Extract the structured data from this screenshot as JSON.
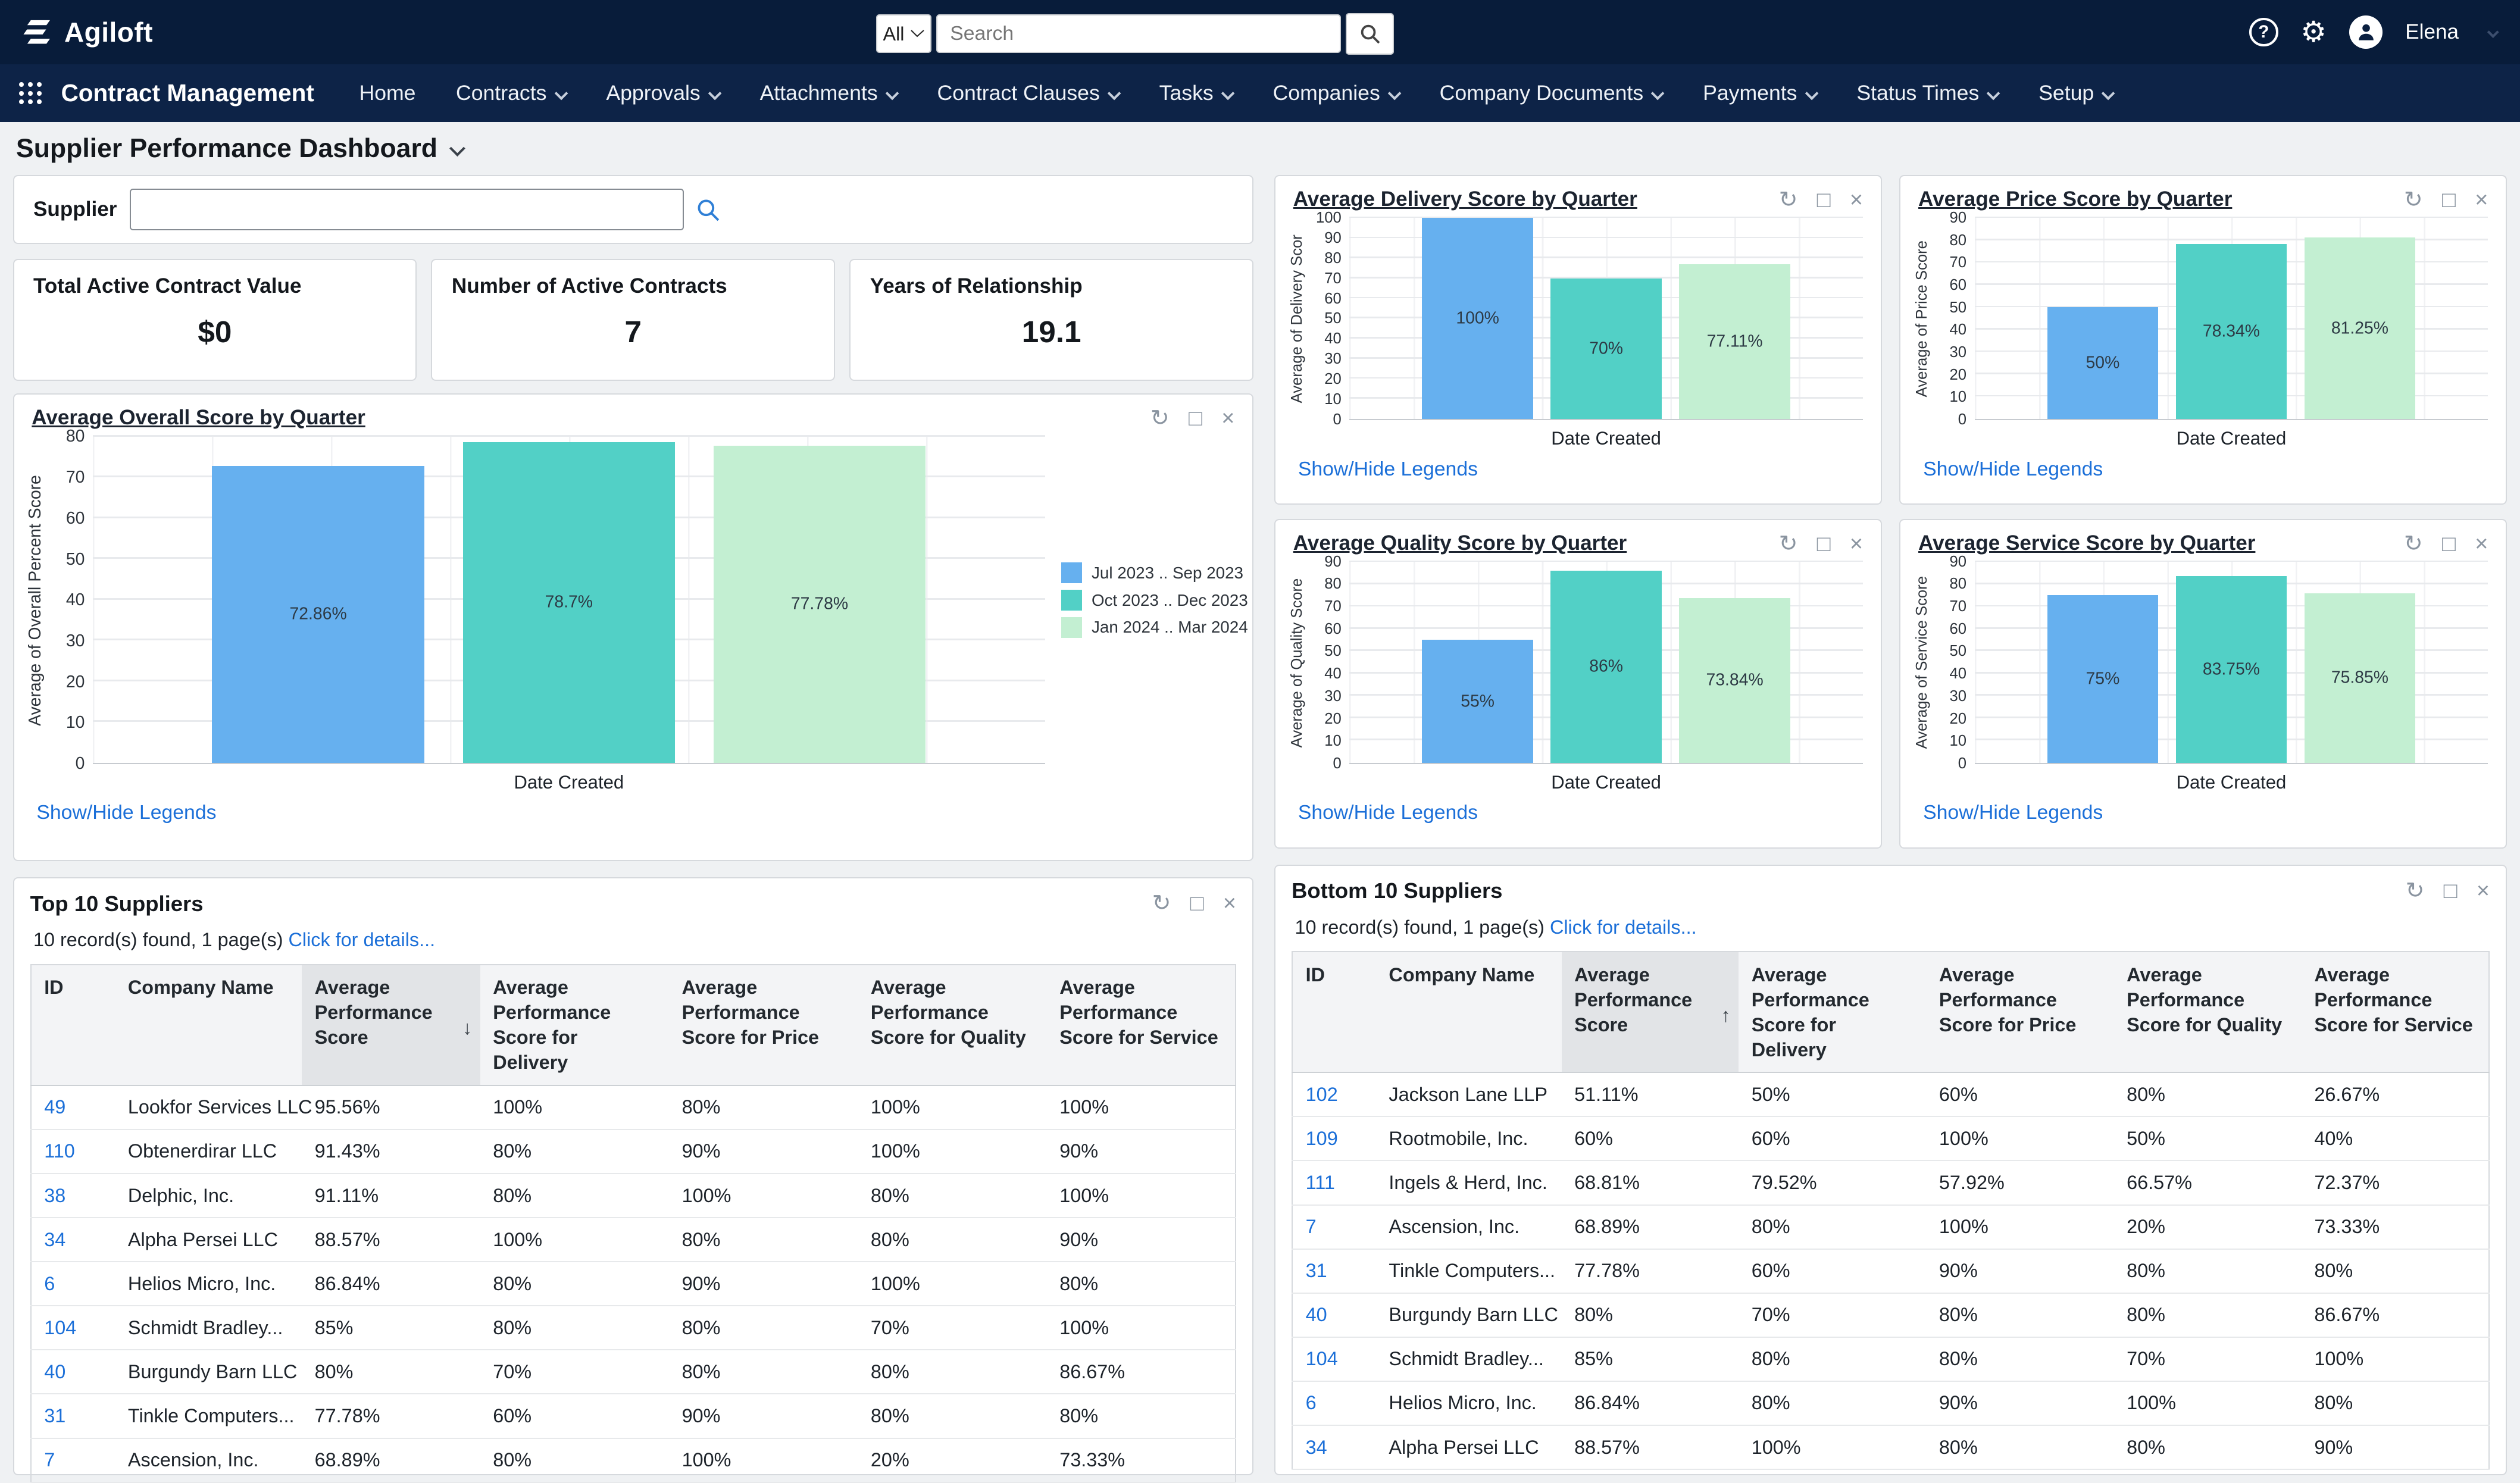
{
  "topbar": {
    "logo_text": "Agiloft",
    "search": {
      "scope": "All",
      "placeholder": "Search"
    },
    "user_name": "Elena"
  },
  "nav": {
    "app_title": "Contract Management",
    "items": [
      {
        "label": "Home",
        "dropdown": false
      },
      {
        "label": "Contracts",
        "dropdown": true
      },
      {
        "label": "Approvals",
        "dropdown": true
      },
      {
        "label": "Attachments",
        "dropdown": true
      },
      {
        "label": "Contract Clauses",
        "dropdown": true
      },
      {
        "label": "Tasks",
        "dropdown": true
      },
      {
        "label": "Companies",
        "dropdown": true
      },
      {
        "label": "Company Documents",
        "dropdown": true
      },
      {
        "label": "Payments",
        "dropdown": true
      },
      {
        "label": "Status Times",
        "dropdown": true
      },
      {
        "label": "Setup",
        "dropdown": true
      }
    ]
  },
  "page": {
    "title": "Supplier Performance Dashboard"
  },
  "filter": {
    "label": "Supplier",
    "value": ""
  },
  "kpis": [
    {
      "label": "Total Active Contract Value",
      "value": "$0"
    },
    {
      "label": "Number of Active Contracts",
      "value": "7"
    },
    {
      "label": "Years of Relationship",
      "value": "19.1"
    }
  ],
  "labels": {
    "show_hide_legends": "Show/Hide Legends"
  },
  "colors": {
    "bar_series": [
      "#66b0ef",
      "#52d0c6",
      "#c3efd2"
    ],
    "link": "#1b6fd8",
    "header_bg": "#081c3a"
  },
  "icons": {
    "refresh": "↻",
    "maximize": "□",
    "close": "×",
    "sort_desc": "↓",
    "sort_asc": "↑"
  },
  "legend_entries": [
    "Jul 2023 .. Sep 2023",
    "Oct 2023 .. Dec 2023",
    "Jan 2024 .. Mar 2024"
  ],
  "chart_data": [
    {
      "type": "bar",
      "title": "Average Overall Score by Quarter",
      "ylabel": "Average of Overall Percent Score",
      "xlabel": "Date Created",
      "ylim": [
        0,
        80
      ],
      "ytick_step": 10,
      "categories": [
        "Jul 2023 .. Sep 2023",
        "Oct 2023 .. Dec 2023",
        "Jan 2024 .. Mar 2024"
      ],
      "values": [
        72.86,
        78.7,
        77.78
      ],
      "labels": [
        "72.86%",
        "78.7%",
        "77.78%"
      ],
      "legend_position": "right",
      "grid": true
    },
    {
      "type": "bar",
      "title": "Average Delivery Score by Quarter",
      "ylabel": "Average of Delivery Scor",
      "xlabel": "Date Created",
      "ylim": [
        0,
        100
      ],
      "ytick_step": 10,
      "categories": [
        "Jul 2023 .. Sep 2023",
        "Oct 2023 .. Dec 2023",
        "Jan 2024 .. Mar 2024"
      ],
      "values": [
        100,
        70,
        77.11
      ],
      "labels": [
        "100%",
        "70%",
        "77.11%"
      ],
      "legend_position": "hidden",
      "grid": true
    },
    {
      "type": "bar",
      "title": "Average Price Score by Quarter",
      "ylabel": "Average of Price Score",
      "xlabel": "Date Created",
      "ylim": [
        0,
        90
      ],
      "ytick_step": 10,
      "categories": [
        "Jul 2023 .. Sep 2023",
        "Oct 2023 .. Dec 2023",
        "Jan 2024 .. Mar 2024"
      ],
      "values": [
        50,
        78.34,
        81.25
      ],
      "labels": [
        "50%",
        "78.34%",
        "81.25%"
      ],
      "legend_position": "hidden",
      "grid": true
    },
    {
      "type": "bar",
      "title": "Average Quality Score by Quarter",
      "ylabel": "Average of Quality Score",
      "xlabel": "Date Created",
      "ylim": [
        0,
        90
      ],
      "ytick_step": 10,
      "categories": [
        "Jul 2023 .. Sep 2023",
        "Oct 2023 .. Dec 2023",
        "Jan 2024 .. Mar 2024"
      ],
      "values": [
        55,
        86,
        73.84
      ],
      "labels": [
        "55%",
        "86%",
        "73.84%"
      ],
      "legend_position": "hidden",
      "grid": true
    },
    {
      "type": "bar",
      "title": "Average Service Score by Quarter",
      "ylabel": "Average of Service Score",
      "xlabel": "Date Created",
      "ylim": [
        0,
        90
      ],
      "ytick_step": 10,
      "categories": [
        "Jul 2023 .. Sep 2023",
        "Oct 2023 .. Dec 2023",
        "Jan 2024 .. Mar 2024"
      ],
      "values": [
        75,
        83.75,
        75.85
      ],
      "labels": [
        "75%",
        "83.75%",
        "75.85%"
      ],
      "legend_position": "hidden",
      "grid": true
    }
  ],
  "tables": {
    "top": {
      "title": "Top 10 Suppliers",
      "record_info": "10 record(s) found, 1 page(s)",
      "details_link": "Click for details...",
      "columns": [
        {
          "label": "ID"
        },
        {
          "label": "Company Name"
        },
        {
          "label": "Average Performance Score",
          "sort": "desc"
        },
        {
          "label": "Average Performance Score for Delivery"
        },
        {
          "label": "Average Performance Score for Price"
        },
        {
          "label": "Average Performance Score for Quality"
        },
        {
          "label": "Average Performance Score for Service"
        }
      ],
      "rows": [
        [
          "49",
          "Lookfor Services LLC",
          "95.56%",
          "100%",
          "80%",
          "100%",
          "100%"
        ],
        [
          "110",
          "Obtenerdirar LLC",
          "91.43%",
          "80%",
          "90%",
          "100%",
          "90%"
        ],
        [
          "38",
          "Delphic, Inc.",
          "91.11%",
          "80%",
          "100%",
          "80%",
          "100%"
        ],
        [
          "34",
          "Alpha Persei LLC",
          "88.57%",
          "100%",
          "80%",
          "80%",
          "90%"
        ],
        [
          "6",
          "Helios Micro, Inc.",
          "86.84%",
          "80%",
          "90%",
          "100%",
          "80%"
        ],
        [
          "104",
          "Schmidt Bradley...",
          "85%",
          "80%",
          "80%",
          "70%",
          "100%"
        ],
        [
          "40",
          "Burgundy Barn LLC",
          "80%",
          "70%",
          "80%",
          "80%",
          "86.67%"
        ],
        [
          "31",
          "Tinkle Computers...",
          "77.78%",
          "60%",
          "90%",
          "80%",
          "80%"
        ],
        [
          "7",
          "Ascension, Inc.",
          "68.89%",
          "80%",
          "100%",
          "20%",
          "73.33%"
        ]
      ]
    },
    "bottom": {
      "title": "Bottom 10 Suppliers",
      "record_info": "10 record(s) found, 1 page(s)",
      "details_link": "Click for details...",
      "columns": [
        {
          "label": "ID"
        },
        {
          "label": "Company Name"
        },
        {
          "label": "Average Performance Score",
          "sort": "asc"
        },
        {
          "label": "Average Performance Score for Delivery"
        },
        {
          "label": "Average Performance Score for Price"
        },
        {
          "label": "Average Performance Score for Quality"
        },
        {
          "label": "Average Performance Score for Service"
        }
      ],
      "rows": [
        [
          "102",
          "Jackson Lane LLP",
          "51.11%",
          "50%",
          "60%",
          "80%",
          "26.67%"
        ],
        [
          "109",
          "Rootmobile, Inc.",
          "60%",
          "60%",
          "100%",
          "50%",
          "40%"
        ],
        [
          "111",
          "Ingels & Herd, Inc.",
          "68.81%",
          "79.52%",
          "57.92%",
          "66.57%",
          "72.37%"
        ],
        [
          "7",
          "Ascension, Inc.",
          "68.89%",
          "80%",
          "100%",
          "20%",
          "73.33%"
        ],
        [
          "31",
          "Tinkle Computers...",
          "77.78%",
          "60%",
          "90%",
          "80%",
          "80%"
        ],
        [
          "40",
          "Burgundy Barn LLC",
          "80%",
          "70%",
          "80%",
          "80%",
          "86.67%"
        ],
        [
          "104",
          "Schmidt Bradley...",
          "85%",
          "80%",
          "80%",
          "70%",
          "100%"
        ],
        [
          "6",
          "Helios Micro, Inc.",
          "86.84%",
          "80%",
          "90%",
          "100%",
          "80%"
        ],
        [
          "34",
          "Alpha Persei LLC",
          "88.57%",
          "100%",
          "80%",
          "80%",
          "90%"
        ]
      ]
    }
  }
}
